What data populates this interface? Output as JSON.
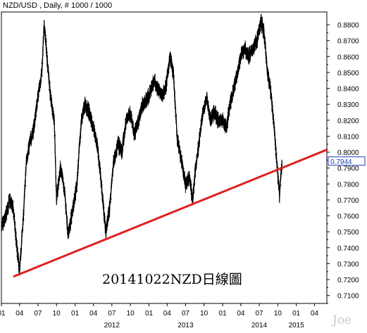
{
  "header": {
    "title": "NZD/USD , Daily, # 1000 / 1000"
  },
  "annotation": "20141022NZD日線圖",
  "watermark": "Joe",
  "colors": {
    "price": "#000000",
    "trendline": "#e02020",
    "last_price_box": "#1f3fbf",
    "background": "#ffffff"
  },
  "chart_data": {
    "type": "line",
    "title": "NZD/USD , Daily, # 1000 / 1000",
    "xlabel": "",
    "ylabel": "",
    "ylim": [
      0.705,
      0.888
    ],
    "x_range": [
      "2011-01-01",
      "2015-06-01"
    ],
    "y_ticks": [
      "0.8800",
      "0.8700",
      "0.8600",
      "0.8500",
      "0.8400",
      "0.8300",
      "0.8200",
      "0.8100",
      "0.8000",
      "0.7900",
      "0.7800",
      "0.7700",
      "0.7600",
      "0.7500",
      "0.7400",
      "0.7300",
      "0.7200",
      "0.7100"
    ],
    "last_price": "0.7944",
    "x_month_ticks": [
      {
        "label": "01",
        "date": "2011-01-01"
      },
      {
        "label": "04",
        "date": "2011-04-01"
      },
      {
        "label": "07",
        "date": "2011-07-01"
      },
      {
        "label": "10",
        "date": "2011-10-01"
      },
      {
        "label": "01",
        "date": "2012-01-01"
      },
      {
        "label": "04",
        "date": "2012-04-01"
      },
      {
        "label": "07",
        "date": "2012-07-01"
      },
      {
        "label": "10",
        "date": "2012-10-01"
      },
      {
        "label": "01",
        "date": "2013-01-01"
      },
      {
        "label": "04",
        "date": "2013-04-01"
      },
      {
        "label": "07",
        "date": "2013-07-01"
      },
      {
        "label": "10",
        "date": "2013-10-01"
      },
      {
        "label": "01",
        "date": "2014-01-01"
      },
      {
        "label": "04",
        "date": "2014-04-01"
      },
      {
        "label": "07",
        "date": "2014-07-01"
      },
      {
        "label": "10",
        "date": "2014-10-01"
      },
      {
        "label": "01",
        "date": "2015-01-01"
      },
      {
        "label": "04",
        "date": "2015-04-01"
      }
    ],
    "x_year_labels": [
      {
        "label": "2012",
        "date": "2012-07-01"
      },
      {
        "label": "2013",
        "date": "2013-07-01"
      },
      {
        "label": "2014",
        "date": "2014-07-01"
      },
      {
        "label": "2015",
        "date": "2015-01-01"
      }
    ],
    "series": [
      {
        "points": [
          [
            "2011-01-01",
            0.752
          ],
          [
            "2011-01-20",
            0.758
          ],
          [
            "2011-02-10",
            0.77
          ],
          [
            "2011-03-01",
            0.764
          ],
          [
            "2011-03-20",
            0.738
          ],
          [
            "2011-04-01",
            0.725
          ],
          [
            "2011-04-20",
            0.76
          ],
          [
            "2011-05-05",
            0.795
          ],
          [
            "2011-05-20",
            0.805
          ],
          [
            "2011-06-10",
            0.815
          ],
          [
            "2011-07-01",
            0.835
          ],
          [
            "2011-07-20",
            0.85
          ],
          [
            "2011-08-01",
            0.88
          ],
          [
            "2011-08-15",
            0.86
          ],
          [
            "2011-09-01",
            0.835
          ],
          [
            "2011-09-20",
            0.82
          ],
          [
            "2011-10-01",
            0.77
          ],
          [
            "2011-10-20",
            0.79
          ],
          [
            "2011-11-10",
            0.775
          ],
          [
            "2011-11-28",
            0.748
          ],
          [
            "2011-12-15",
            0.76
          ],
          [
            "2012-01-10",
            0.78
          ],
          [
            "2012-02-01",
            0.82
          ],
          [
            "2012-02-20",
            0.83
          ],
          [
            "2012-03-10",
            0.825
          ],
          [
            "2012-04-01",
            0.815
          ],
          [
            "2012-04-20",
            0.805
          ],
          [
            "2012-05-10",
            0.78
          ],
          [
            "2012-06-01",
            0.75
          ],
          [
            "2012-06-20",
            0.765
          ],
          [
            "2012-07-10",
            0.795
          ],
          [
            "2012-08-01",
            0.805
          ],
          [
            "2012-08-20",
            0.8
          ],
          [
            "2012-09-10",
            0.82
          ],
          [
            "2012-10-01",
            0.825
          ],
          [
            "2012-10-20",
            0.81
          ],
          [
            "2012-11-10",
            0.82
          ],
          [
            "2012-12-01",
            0.83
          ],
          [
            "2013-01-01",
            0.835
          ],
          [
            "2013-01-25",
            0.845
          ],
          [
            "2013-02-15",
            0.84
          ],
          [
            "2013-03-05",
            0.835
          ],
          [
            "2013-03-25",
            0.84
          ],
          [
            "2013-04-15",
            0.86
          ],
          [
            "2013-05-01",
            0.85
          ],
          [
            "2013-05-20",
            0.81
          ],
          [
            "2013-06-10",
            0.795
          ],
          [
            "2013-07-01",
            0.78
          ],
          [
            "2013-07-20",
            0.785
          ],
          [
            "2013-08-05",
            0.77
          ],
          [
            "2013-08-20",
            0.79
          ],
          [
            "2013-09-10",
            0.81
          ],
          [
            "2013-09-25",
            0.825
          ],
          [
            "2013-10-15",
            0.835
          ],
          [
            "2013-11-01",
            0.82
          ],
          [
            "2013-11-20",
            0.825
          ],
          [
            "2013-12-10",
            0.82
          ],
          [
            "2014-01-01",
            0.82
          ],
          [
            "2014-01-20",
            0.815
          ],
          [
            "2014-02-05",
            0.83
          ],
          [
            "2014-02-25",
            0.84
          ],
          [
            "2014-03-15",
            0.85
          ],
          [
            "2014-04-01",
            0.86
          ],
          [
            "2014-04-20",
            0.865
          ],
          [
            "2014-05-10",
            0.86
          ],
          [
            "2014-06-01",
            0.865
          ],
          [
            "2014-06-20",
            0.87
          ],
          [
            "2014-07-10",
            0.882
          ],
          [
            "2014-07-25",
            0.875
          ],
          [
            "2014-08-10",
            0.85
          ],
          [
            "2014-08-25",
            0.84
          ],
          [
            "2014-09-10",
            0.82
          ],
          [
            "2014-09-25",
            0.795
          ],
          [
            "2014-10-05",
            0.78
          ],
          [
            "2014-10-10",
            0.772
          ],
          [
            "2014-10-16",
            0.785
          ],
          [
            "2014-10-22",
            0.7944
          ]
        ]
      }
    ],
    "trendline": {
      "start": [
        "2011-03-05",
        0.722
      ],
      "end": [
        "2015-06-01",
        0.8015
      ]
    }
  }
}
